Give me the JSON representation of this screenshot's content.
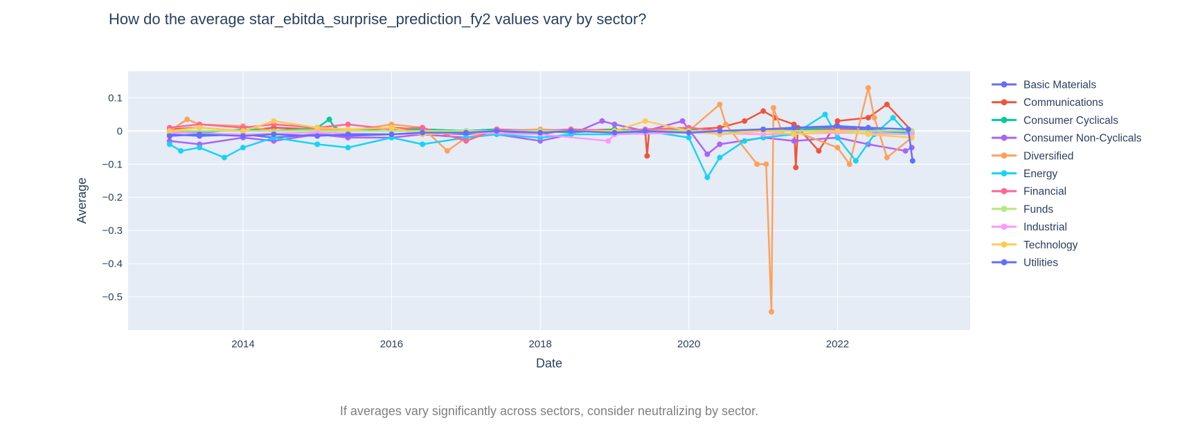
{
  "chart_data": {
    "type": "line",
    "title": "How do the average star_ebitda_surprise_prediction_fy2 values vary by sector?",
    "xlabel": "Date",
    "ylabel": "Average",
    "x_range": [
      "2012-06-15",
      "2023-10-15"
    ],
    "ylim": [
      -0.6,
      0.18
    ],
    "x_ticks": [
      {
        "date": "2014-01-01",
        "label": "2014"
      },
      {
        "date": "2016-01-01",
        "label": "2016"
      },
      {
        "date": "2018-01-01",
        "label": "2018"
      },
      {
        "date": "2020-01-01",
        "label": "2020"
      },
      {
        "date": "2022-01-01",
        "label": "2022"
      }
    ],
    "y_ticks": [
      {
        "value": 0.1,
        "label": "0.1"
      },
      {
        "value": 0,
        "label": "0"
      },
      {
        "value": -0.1,
        "label": "−0.1"
      },
      {
        "value": -0.2,
        "label": "−0.2"
      },
      {
        "value": -0.3,
        "label": "−0.3"
      },
      {
        "value": -0.4,
        "label": "−0.4"
      },
      {
        "value": -0.5,
        "label": "−0.5"
      }
    ],
    "grid": true,
    "legend_position": "right",
    "annotation": "If averages vary significantly across sectors, consider neutralizing by sector.",
    "series": [
      {
        "name": "Basic Materials",
        "color": "#636efa",
        "points": [
          [
            "2013-01-05",
            -0.01
          ],
          [
            "2013-06-01",
            -0.015
          ],
          [
            "2014-01-01",
            -0.01
          ],
          [
            "2014-06-01",
            -0.02
          ],
          [
            "2015-01-01",
            -0.01
          ],
          [
            "2015-06-01",
            -0.015
          ],
          [
            "2016-01-01",
            -0.01
          ],
          [
            "2016-06-01",
            -0.005
          ],
          [
            "2017-01-01",
            -0.01
          ],
          [
            "2017-06-01",
            0.0
          ],
          [
            "2018-01-01",
            -0.01
          ],
          [
            "2018-06-01",
            0.005
          ],
          [
            "2019-01-01",
            0.0
          ],
          [
            "2019-06-01",
            -0.005
          ],
          [
            "2020-01-01",
            0.0
          ],
          [
            "2020-06-01",
            -0.01
          ],
          [
            "2021-01-01",
            0.0
          ],
          [
            "2021-06-01",
            0.005
          ],
          [
            "2022-01-01",
            0.01
          ],
          [
            "2022-06-01",
            0.005
          ],
          [
            "2023-01-01",
            -0.005
          ]
        ]
      },
      {
        "name": "Communications",
        "color": "#EF553B",
        "points": [
          [
            "2013-01-05",
            0.005
          ],
          [
            "2013-06-01",
            0.01
          ],
          [
            "2014-01-01",
            0.0
          ],
          [
            "2014-06-01",
            0.01
          ],
          [
            "2015-01-01",
            0.005
          ],
          [
            "2015-06-01",
            0.0
          ],
          [
            "2016-01-01",
            0.01
          ],
          [
            "2016-06-01",
            0.005
          ],
          [
            "2017-01-01",
            0.0
          ],
          [
            "2017-06-01",
            0.005
          ],
          [
            "2018-01-01",
            -0.005
          ],
          [
            "2018-06-01",
            0.0
          ],
          [
            "2019-01-01",
            0.005
          ],
          [
            "2019-06-01",
            0.0
          ],
          [
            "2019-06-10",
            -0.075
          ],
          [
            "2019-06-20",
            0.0
          ],
          [
            "2020-01-01",
            0.005
          ],
          [
            "2020-06-01",
            0.01
          ],
          [
            "2020-10-01",
            0.03
          ],
          [
            "2021-01-01",
            0.06
          ],
          [
            "2021-03-01",
            0.04
          ],
          [
            "2021-06-01",
            0.02
          ],
          [
            "2021-06-10",
            -0.11
          ],
          [
            "2021-06-20",
            0.01
          ],
          [
            "2021-10-01",
            -0.06
          ],
          [
            "2022-01-01",
            0.03
          ],
          [
            "2022-06-01",
            0.04
          ],
          [
            "2022-09-01",
            0.08
          ],
          [
            "2023-01-01",
            0.0
          ]
        ]
      },
      {
        "name": "Consumer Cyclicals",
        "color": "#00cc96",
        "points": [
          [
            "2013-01-05",
            0.0
          ],
          [
            "2013-06-01",
            -0.005
          ],
          [
            "2014-01-01",
            0.005
          ],
          [
            "2014-06-01",
            0.0
          ],
          [
            "2015-01-01",
            0.01
          ],
          [
            "2015-03-01",
            0.035
          ],
          [
            "2015-04-01",
            0.005
          ],
          [
            "2016-01-01",
            0.0
          ],
          [
            "2016-06-01",
            0.005
          ],
          [
            "2017-01-01",
            0.0
          ],
          [
            "2017-06-01",
            0.005
          ],
          [
            "2018-01-01",
            0.0
          ],
          [
            "2018-06-01",
            -0.005
          ],
          [
            "2019-01-01",
            0.005
          ],
          [
            "2019-06-01",
            0.0
          ],
          [
            "2020-01-01",
            0.005
          ],
          [
            "2020-06-01",
            -0.01
          ],
          [
            "2021-01-01",
            0.005
          ],
          [
            "2021-06-01",
            0.01
          ],
          [
            "2022-01-01",
            0.005
          ],
          [
            "2022-06-01",
            0.0
          ],
          [
            "2023-01-01",
            -0.005
          ]
        ]
      },
      {
        "name": "Consumer Non-Cyclicals",
        "color": "#ab63fa",
        "points": [
          [
            "2013-01-05",
            -0.03
          ],
          [
            "2013-06-01",
            -0.04
          ],
          [
            "2014-01-01",
            -0.02
          ],
          [
            "2014-06-01",
            -0.03
          ],
          [
            "2015-01-01",
            -0.01
          ],
          [
            "2015-06-01",
            -0.02
          ],
          [
            "2016-01-01",
            -0.02
          ],
          [
            "2016-06-01",
            -0.01
          ],
          [
            "2017-01-01",
            -0.02
          ],
          [
            "2017-06-01",
            -0.01
          ],
          [
            "2018-01-01",
            -0.03
          ],
          [
            "2018-06-01",
            -0.01
          ],
          [
            "2018-11-01",
            0.03
          ],
          [
            "2019-01-01",
            0.02
          ],
          [
            "2019-06-01",
            0.0
          ],
          [
            "2019-12-01",
            0.03
          ],
          [
            "2020-04-01",
            -0.07
          ],
          [
            "2020-06-01",
            -0.04
          ],
          [
            "2021-01-01",
            -0.02
          ],
          [
            "2021-06-01",
            -0.03
          ],
          [
            "2022-01-01",
            -0.02
          ],
          [
            "2022-06-01",
            -0.04
          ],
          [
            "2022-12-01",
            -0.06
          ],
          [
            "2023-01-01",
            -0.05
          ]
        ]
      },
      {
        "name": "Diversified",
        "color": "#FFA15A",
        "points": [
          [
            "2013-01-05",
            0.0
          ],
          [
            "2013-04-01",
            0.035
          ],
          [
            "2013-06-01",
            0.02
          ],
          [
            "2014-01-01",
            0.015
          ],
          [
            "2014-06-01",
            0.0
          ],
          [
            "2015-01-01",
            0.005
          ],
          [
            "2015-06-01",
            0.0
          ],
          [
            "2016-01-01",
            0.02
          ],
          [
            "2016-06-01",
            0.01
          ],
          [
            "2016-10-01",
            -0.06
          ],
          [
            "2017-01-01",
            -0.02
          ],
          [
            "2017-06-01",
            0.0
          ],
          [
            "2018-01-01",
            0.005
          ],
          [
            "2018-06-01",
            0.0
          ],
          [
            "2019-01-01",
            0.0
          ],
          [
            "2019-06-01",
            0.005
          ],
          [
            "2020-01-01",
            0.0
          ],
          [
            "2020-06-01",
            0.08
          ],
          [
            "2020-07-01",
            0.02
          ],
          [
            "2020-12-01",
            -0.1
          ],
          [
            "2021-01-15",
            -0.1
          ],
          [
            "2021-02-10",
            -0.545
          ],
          [
            "2021-02-20",
            0.07
          ],
          [
            "2021-04-01",
            0.0
          ],
          [
            "2021-06-01",
            0.0
          ],
          [
            "2022-01-01",
            -0.05
          ],
          [
            "2022-03-01",
            -0.1
          ],
          [
            "2022-06-01",
            0.13
          ],
          [
            "2022-07-01",
            0.04
          ],
          [
            "2022-09-01",
            -0.08
          ],
          [
            "2023-01-01",
            -0.02
          ]
        ]
      },
      {
        "name": "Energy",
        "color": "#19d3f3",
        "points": [
          [
            "2013-01-05",
            -0.04
          ],
          [
            "2013-03-01",
            -0.06
          ],
          [
            "2013-06-01",
            -0.05
          ],
          [
            "2013-10-01",
            -0.08
          ],
          [
            "2014-01-01",
            -0.05
          ],
          [
            "2014-06-01",
            -0.02
          ],
          [
            "2015-01-01",
            -0.04
          ],
          [
            "2015-06-01",
            -0.05
          ],
          [
            "2016-01-01",
            -0.02
          ],
          [
            "2016-06-01",
            -0.04
          ],
          [
            "2017-01-01",
            -0.02
          ],
          [
            "2017-06-01",
            -0.01
          ],
          [
            "2018-01-01",
            -0.02
          ],
          [
            "2018-06-01",
            -0.01
          ],
          [
            "2019-01-01",
            -0.01
          ],
          [
            "2019-06-01",
            0.0
          ],
          [
            "2020-01-01",
            -0.02
          ],
          [
            "2020-04-01",
            -0.14
          ],
          [
            "2020-06-01",
            -0.08
          ],
          [
            "2020-10-01",
            -0.03
          ],
          [
            "2021-01-01",
            -0.02
          ],
          [
            "2021-06-01",
            -0.01
          ],
          [
            "2021-11-01",
            0.05
          ],
          [
            "2022-01-01",
            -0.02
          ],
          [
            "2022-04-01",
            -0.09
          ],
          [
            "2022-07-01",
            -0.01
          ],
          [
            "2022-10-01",
            0.04
          ],
          [
            "2023-01-01",
            -0.02
          ]
        ]
      },
      {
        "name": "Financial",
        "color": "#FF6692",
        "points": [
          [
            "2013-01-05",
            0.01
          ],
          [
            "2013-06-01",
            0.02
          ],
          [
            "2014-01-01",
            0.01
          ],
          [
            "2014-06-01",
            0.02
          ],
          [
            "2015-01-01",
            0.01
          ],
          [
            "2015-06-01",
            0.02
          ],
          [
            "2016-01-01",
            0.005
          ],
          [
            "2016-06-01",
            0.01
          ],
          [
            "2017-01-01",
            -0.03
          ],
          [
            "2017-06-01",
            0.005
          ],
          [
            "2018-01-01",
            0.0
          ],
          [
            "2018-06-01",
            0.005
          ],
          [
            "2019-01-01",
            0.0
          ],
          [
            "2019-06-01",
            0.005
          ],
          [
            "2020-01-01",
            0.01
          ],
          [
            "2020-06-01",
            0.0
          ],
          [
            "2021-01-01",
            0.005
          ],
          [
            "2021-06-01",
            0.0
          ],
          [
            "2022-01-01",
            0.005
          ],
          [
            "2022-06-01",
            0.0
          ],
          [
            "2023-01-01",
            0.0
          ]
        ]
      },
      {
        "name": "Funds",
        "color": "#B6E880",
        "points": [
          [
            "2013-01-05",
            0.0
          ],
          [
            "2014-01-01",
            0.0
          ],
          [
            "2015-01-01",
            0.0
          ],
          [
            "2016-01-01",
            0.0
          ],
          [
            "2017-01-01",
            0.0
          ],
          [
            "2018-01-01",
            0.0
          ],
          [
            "2019-01-01",
            0.0
          ],
          [
            "2020-01-01",
            0.0
          ],
          [
            "2021-01-01",
            0.0
          ],
          [
            "2022-01-01",
            0.0
          ],
          [
            "2023-01-01",
            0.0
          ]
        ]
      },
      {
        "name": "Industrial",
        "color": "#FF97FF",
        "points": [
          [
            "2013-01-05",
            -0.005
          ],
          [
            "2014-01-01",
            -0.01
          ],
          [
            "2015-01-01",
            -0.005
          ],
          [
            "2016-01-01",
            -0.01
          ],
          [
            "2017-01-01",
            -0.005
          ],
          [
            "2018-01-01",
            -0.01
          ],
          [
            "2018-12-01",
            -0.03
          ],
          [
            "2019-01-01",
            -0.01
          ],
          [
            "2020-01-01",
            -0.005
          ],
          [
            "2021-01-01",
            -0.01
          ],
          [
            "2022-01-01",
            -0.005
          ],
          [
            "2023-01-01",
            -0.01
          ]
        ]
      },
      {
        "name": "Technology",
        "color": "#FECB52",
        "points": [
          [
            "2013-01-05",
            0.0
          ],
          [
            "2013-06-01",
            0.01
          ],
          [
            "2014-01-01",
            0.0
          ],
          [
            "2014-06-01",
            0.03
          ],
          [
            "2015-01-01",
            0.01
          ],
          [
            "2015-06-01",
            0.005
          ],
          [
            "2016-01-01",
            0.01
          ],
          [
            "2016-06-01",
            -0.01
          ],
          [
            "2017-01-01",
            -0.005
          ],
          [
            "2017-06-01",
            0.0
          ],
          [
            "2018-01-01",
            -0.005
          ],
          [
            "2018-06-01",
            0.0
          ],
          [
            "2019-01-01",
            0.0
          ],
          [
            "2019-06-01",
            0.03
          ],
          [
            "2020-01-01",
            0.0
          ],
          [
            "2020-06-01",
            -0.01
          ],
          [
            "2021-01-01",
            0.0
          ],
          [
            "2021-06-01",
            -0.01
          ],
          [
            "2022-01-01",
            0.0
          ],
          [
            "2022-06-01",
            -0.01
          ],
          [
            "2023-01-01",
            -0.02
          ]
        ]
      },
      {
        "name": "Utilities",
        "color": "#636efa",
        "points": [
          [
            "2013-01-05",
            -0.015
          ],
          [
            "2013-06-01",
            -0.01
          ],
          [
            "2014-01-01",
            -0.015
          ],
          [
            "2014-06-01",
            -0.01
          ],
          [
            "2015-01-01",
            -0.015
          ],
          [
            "2015-06-01",
            -0.01
          ],
          [
            "2016-01-01",
            -0.01
          ],
          [
            "2016-06-01",
            -0.005
          ],
          [
            "2017-01-01",
            -0.005
          ],
          [
            "2017-06-01",
            0.0
          ],
          [
            "2018-01-01",
            -0.005
          ],
          [
            "2018-06-01",
            0.0
          ],
          [
            "2019-01-01",
            -0.005
          ],
          [
            "2019-06-01",
            0.0
          ],
          [
            "2020-01-01",
            -0.005
          ],
          [
            "2020-06-01",
            0.0
          ],
          [
            "2021-01-01",
            0.005
          ],
          [
            "2021-06-01",
            0.01
          ],
          [
            "2022-01-01",
            0.015
          ],
          [
            "2022-06-01",
            0.01
          ],
          [
            "2022-12-15",
            0.005
          ],
          [
            "2023-01-05",
            -0.09
          ]
        ]
      }
    ]
  }
}
